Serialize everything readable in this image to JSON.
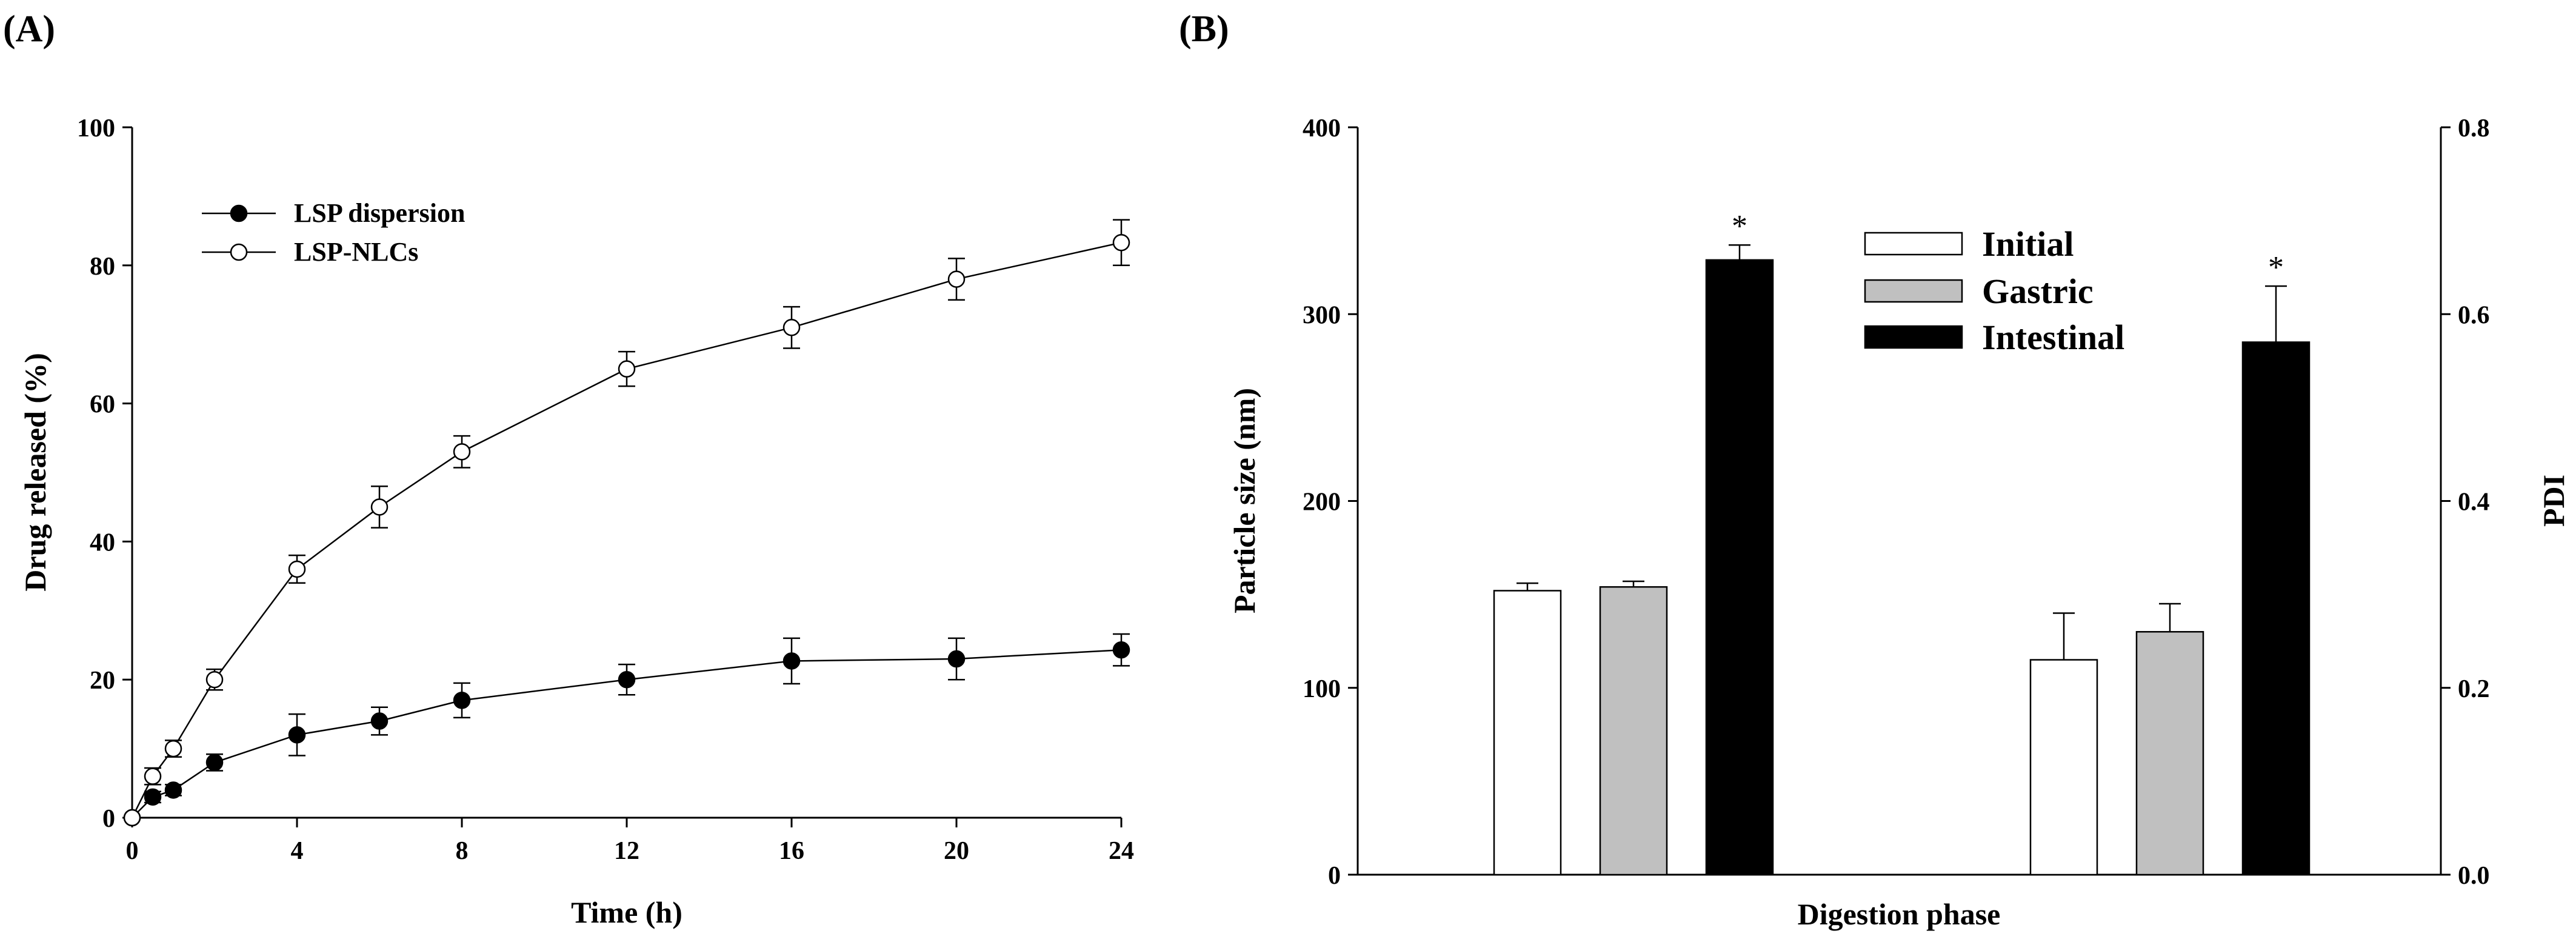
{
  "chart_data": [
    {
      "type": "line",
      "panel_label": "(A)",
      "xlabel": "Time (h)",
      "ylabel": "Drug released (%)",
      "xlim": [
        0,
        24
      ],
      "ylim": [
        0,
        100
      ],
      "xticks": [
        0,
        4,
        8,
        12,
        16,
        20,
        24
      ],
      "yticks": [
        0,
        20,
        40,
        60,
        80,
        100
      ],
      "legend_position": "top-left",
      "series": [
        {
          "name": "LSP dispersion",
          "marker": "filled-circle",
          "x": [
            0,
            0.5,
            1,
            2,
            4,
            6,
            8,
            12,
            16,
            20,
            24
          ],
          "y": [
            0,
            3,
            4,
            8,
            12,
            14,
            17,
            20,
            22.7,
            23,
            24.3
          ],
          "err": [
            0,
            0.8,
            0.8,
            1.2,
            3,
            2,
            2.5,
            2.2,
            3.3,
            3,
            2.3
          ]
        },
        {
          "name": "LSP-NLCs",
          "marker": "open-circle",
          "x": [
            0,
            0.5,
            1,
            2,
            4,
            6,
            8,
            12,
            16,
            20,
            24
          ],
          "y": [
            0,
            6,
            10,
            20,
            36,
            45,
            53,
            65,
            71,
            78,
            83.3
          ],
          "err": [
            0,
            1.2,
            1.2,
            1.5,
            2,
            3,
            2.3,
            2.5,
            3,
            3,
            3.3
          ]
        }
      ]
    },
    {
      "type": "bar",
      "panel_label": "(B)",
      "xlabel": "Digestion phase",
      "ylabel_left": "Particle size (nm)",
      "ylabel_right": "PDI",
      "ylim_left": [
        0,
        400
      ],
      "ylim_right": [
        0.0,
        0.8
      ],
      "yticks_left": [
        0,
        100,
        200,
        300,
        400
      ],
      "yticks_right": [
        "0.0",
        "0.2",
        "0.4",
        "0.6",
        "0.8"
      ],
      "legend_position": "top-center",
      "series": [
        {
          "name": "Initial",
          "color": "#ffffff"
        },
        {
          "name": "Gastric",
          "color": "#c0c0c0"
        },
        {
          "name": "Intestinal",
          "color": "#000000"
        }
      ],
      "groups": [
        {
          "name": "Particle size",
          "axis": "left",
          "values": [
            152,
            154,
            329
          ],
          "err": [
            4,
            3,
            8
          ],
          "significance": [
            "",
            "",
            "*"
          ]
        },
        {
          "name": "PDI",
          "axis": "right",
          "values": [
            0.23,
            0.26,
            0.57
          ],
          "err": [
            0.05,
            0.03,
            0.06
          ],
          "significance": [
            "",
            "",
            "*"
          ]
        }
      ]
    }
  ]
}
